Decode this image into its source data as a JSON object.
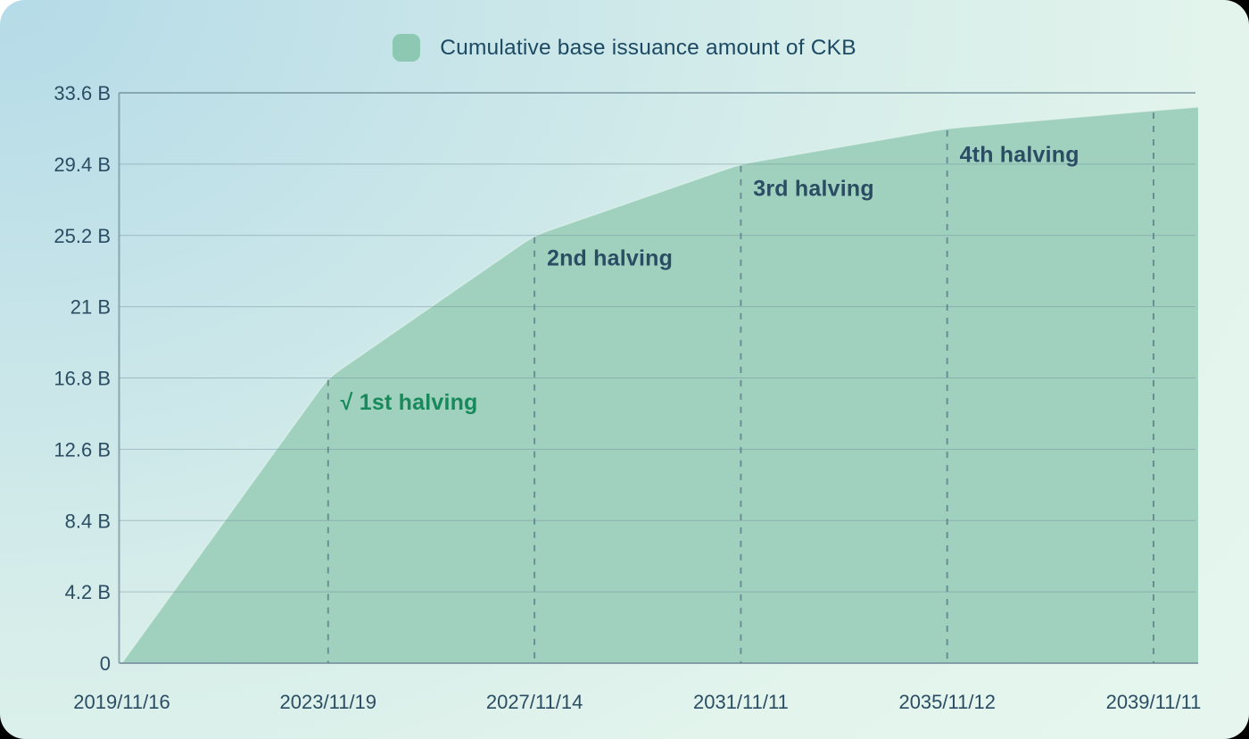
{
  "legend": {
    "label": "Cumulative base issuance amount of CKB",
    "swatch_color": "#8dc8b3"
  },
  "chart_data": {
    "type": "area",
    "title": "Cumulative base issuance amount of CKB",
    "xlabel": "",
    "ylabel": "",
    "unit": "B",
    "ylim": [
      0,
      33.6
    ],
    "grid": true,
    "legend_position": "top-center",
    "x_tick_labels": [
      "2019/11/16",
      "2023/11/19",
      "2027/11/14",
      "2031/11/11",
      "2035/11/12",
      "2039/11/11"
    ],
    "y_tick_values": [
      0,
      4.2,
      8.4,
      12.6,
      16.8,
      21,
      25.2,
      29.4,
      33.6
    ],
    "y_tick_labels": [
      "0",
      "4.2 B",
      "8.4 B",
      "12.6 B",
      "16.8 B",
      "21 B",
      "25.2 B",
      "29.4 B",
      "33.6 B"
    ],
    "series": [
      {
        "name": "Cumulative base issuance amount of CKB",
        "points": [
          {
            "x": 0,
            "y": 0
          },
          {
            "x": 1,
            "y": 16.8
          },
          {
            "x": 2,
            "y": 25.2
          },
          {
            "x": 3,
            "y": 29.4
          },
          {
            "x": 4,
            "y": 31.5
          },
          {
            "x": 5,
            "y": 32.55
          },
          {
            "x": 5.216,
            "y": 32.76
          }
        ]
      }
    ],
    "marker_lines": [
      1,
      2,
      3,
      4,
      5
    ],
    "annotations": [
      {
        "text": "√ 1st halving",
        "x": 1.06,
        "y": 15.4,
        "color": "#17895a"
      },
      {
        "text": "2nd halving",
        "x": 2.06,
        "y": 23.9,
        "color": "#2b4d63"
      },
      {
        "text": "3rd halving",
        "x": 3.06,
        "y": 28.0,
        "color": "#2b4d63"
      },
      {
        "text": "4th halving",
        "x": 4.06,
        "y": 30.0,
        "color": "#2b4d63"
      }
    ],
    "colors": {
      "area_fill": "#a0d1bf",
      "area_edge_highlight": "#e9f8f1",
      "grid_line": "#6d8a96",
      "axis_line": "#7d98a4",
      "marker_dash": "#5d7f87",
      "tick_text": "#2b4d63"
    }
  }
}
